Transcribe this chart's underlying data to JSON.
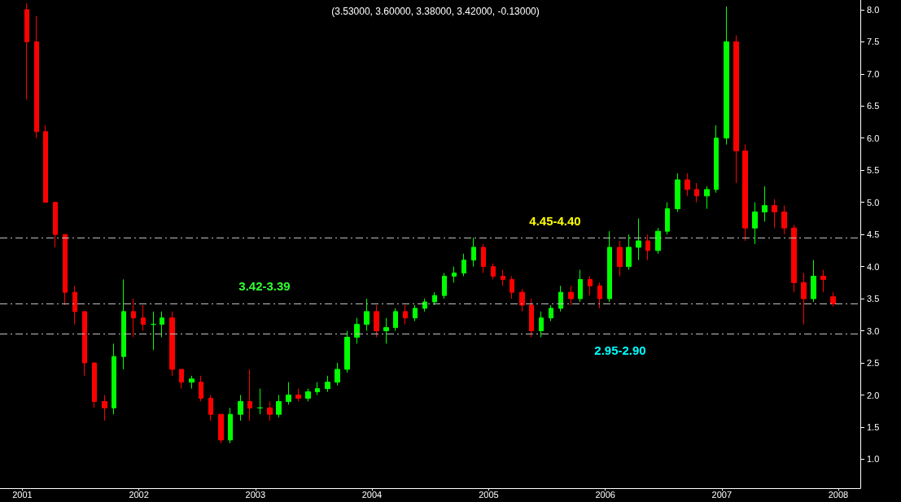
{
  "chart_data": {
    "type": "candlestick",
    "title": "(3.53000, 3.60000, 3.38000, 3.42000, -0.13000)",
    "x": [
      "2001-01-15",
      "2001-02-15",
      "2001-03-15",
      "2001-04-15",
      "2001-05-15",
      "2001-06-15",
      "2001-07-15",
      "2001-08-15",
      "2001-09-15",
      "2001-10-15",
      "2001-11-15",
      "2001-12-15",
      "2002-01-15",
      "2002-02-15",
      "2002-03-15",
      "2002-04-15",
      "2002-05-15",
      "2002-06-15",
      "2002-07-15",
      "2002-08-15",
      "2002-09-15",
      "2002-10-15",
      "2002-11-15",
      "2002-12-15",
      "2003-01-15",
      "2003-02-15",
      "2003-03-15",
      "2003-04-15",
      "2003-05-15",
      "2003-06-15",
      "2003-07-15",
      "2003-08-15",
      "2003-09-15",
      "2003-10-15",
      "2003-11-15",
      "2003-12-15",
      "2004-01-15",
      "2004-02-15",
      "2004-03-15",
      "2004-04-15",
      "2004-05-15",
      "2004-06-15",
      "2004-07-15",
      "2004-08-15",
      "2004-09-15",
      "2004-10-15",
      "2004-11-15",
      "2004-12-15",
      "2005-01-15",
      "2005-02-15",
      "2005-03-15",
      "2005-04-15",
      "2005-05-15",
      "2005-06-15",
      "2005-07-15",
      "2005-08-15",
      "2005-09-15",
      "2005-10-15",
      "2005-11-15",
      "2005-12-15",
      "2006-01-15",
      "2006-02-15",
      "2006-03-15",
      "2006-04-15",
      "2006-05-15",
      "2006-06-15",
      "2006-07-15",
      "2006-08-15",
      "2006-09-15",
      "2006-10-15",
      "2006-11-15",
      "2006-12-15",
      "2007-01-15",
      "2007-02-15",
      "2007-03-15",
      "2007-04-15",
      "2007-05-15",
      "2007-06-15",
      "2007-07-15",
      "2007-08-15",
      "2007-09-15",
      "2007-10-15",
      "2007-11-15",
      "2007-12-15"
    ],
    "ohlc": [
      [
        8.0,
        8.1,
        6.6,
        7.5
      ],
      [
        7.5,
        7.9,
        6.0,
        6.1
      ],
      [
        6.1,
        6.2,
        5.0,
        5.0
      ],
      [
        5.0,
        5.0,
        4.3,
        4.5
      ],
      [
        4.5,
        4.5,
        3.4,
        3.6
      ],
      [
        3.6,
        3.7,
        3.1,
        3.3
      ],
      [
        3.3,
        3.3,
        2.3,
        2.5
      ],
      [
        2.5,
        2.5,
        1.8,
        1.9
      ],
      [
        1.9,
        2.0,
        1.6,
        1.8
      ],
      [
        1.8,
        2.8,
        1.7,
        2.6
      ],
      [
        2.6,
        3.8,
        2.4,
        3.3
      ],
      [
        3.3,
        3.5,
        2.9,
        3.2
      ],
      [
        3.2,
        3.4,
        3.0,
        3.1
      ],
      [
        3.1,
        3.3,
        2.7,
        3.1
      ],
      [
        3.1,
        3.3,
        2.9,
        3.2
      ],
      [
        3.2,
        3.3,
        2.3,
        2.4
      ],
      [
        2.4,
        2.4,
        2.1,
        2.2
      ],
      [
        2.2,
        2.3,
        2.1,
        2.25
      ],
      [
        2.2,
        2.3,
        1.9,
        1.95
      ],
      [
        1.95,
        2.0,
        1.6,
        1.7
      ],
      [
        1.7,
        1.7,
        1.25,
        1.3
      ],
      [
        1.3,
        1.8,
        1.25,
        1.7
      ],
      [
        1.7,
        2.0,
        1.6,
        1.9
      ],
      [
        1.9,
        2.4,
        1.6,
        1.8
      ],
      [
        1.8,
        2.1,
        1.7,
        1.8
      ],
      [
        1.8,
        1.9,
        1.6,
        1.7
      ],
      [
        1.7,
        2.0,
        1.65,
        1.9
      ],
      [
        1.9,
        2.2,
        1.85,
        2.0
      ],
      [
        2.0,
        2.1,
        1.9,
        1.95
      ],
      [
        1.95,
        2.1,
        1.9,
        2.05
      ],
      [
        2.05,
        2.2,
        2.0,
        2.1
      ],
      [
        2.1,
        2.3,
        2.05,
        2.2
      ],
      [
        2.2,
        2.5,
        2.15,
        2.4
      ],
      [
        2.4,
        3.0,
        2.35,
        2.9
      ],
      [
        2.9,
        3.2,
        2.8,
        3.1
      ],
      [
        3.1,
        3.5,
        3.0,
        3.3
      ],
      [
        3.3,
        3.4,
        2.9,
        3.0
      ],
      [
        3.0,
        3.2,
        2.8,
        3.05
      ],
      [
        3.05,
        3.35,
        3.0,
        3.3
      ],
      [
        3.3,
        3.4,
        3.1,
        3.2
      ],
      [
        3.2,
        3.4,
        3.15,
        3.35
      ],
      [
        3.35,
        3.5,
        3.3,
        3.45
      ],
      [
        3.45,
        3.6,
        3.4,
        3.55
      ],
      [
        3.55,
        3.9,
        3.5,
        3.85
      ],
      [
        3.85,
        4.0,
        3.75,
        3.9
      ],
      [
        3.9,
        4.2,
        3.85,
        4.1
      ],
      [
        4.1,
        4.45,
        4.0,
        4.3
      ],
      [
        4.3,
        4.35,
        3.9,
        4.0
      ],
      [
        4.0,
        4.05,
        3.8,
        3.85
      ],
      [
        3.85,
        3.95,
        3.7,
        3.8
      ],
      [
        3.8,
        3.85,
        3.5,
        3.6
      ],
      [
        3.6,
        3.65,
        3.3,
        3.4
      ],
      [
        3.4,
        3.5,
        2.9,
        3.0
      ],
      [
        3.0,
        3.3,
        2.9,
        3.2
      ],
      [
        3.2,
        3.4,
        3.15,
        3.35
      ],
      [
        3.35,
        3.7,
        3.3,
        3.6
      ],
      [
        3.6,
        3.7,
        3.4,
        3.5
      ],
      [
        3.5,
        3.95,
        3.45,
        3.8
      ],
      [
        3.8,
        3.85,
        3.55,
        3.7
      ],
      [
        3.7,
        3.75,
        3.35,
        3.5
      ],
      [
        3.5,
        4.55,
        3.45,
        4.3
      ],
      [
        4.3,
        4.4,
        3.85,
        4.0
      ],
      [
        4.0,
        4.5,
        3.95,
        4.3
      ],
      [
        4.3,
        4.75,
        4.1,
        4.4
      ],
      [
        4.4,
        4.5,
        4.1,
        4.25
      ],
      [
        4.25,
        4.6,
        4.2,
        4.55
      ],
      [
        4.55,
        5.0,
        4.5,
        4.9
      ],
      [
        4.9,
        5.45,
        4.85,
        5.35
      ],
      [
        5.35,
        5.45,
        5.1,
        5.2
      ],
      [
        5.2,
        5.3,
        5.0,
        5.1
      ],
      [
        5.1,
        5.25,
        4.9,
        5.2
      ],
      [
        5.2,
        6.2,
        5.15,
        6.0
      ],
      [
        6.0,
        8.05,
        5.9,
        7.5
      ],
      [
        7.5,
        7.6,
        5.3,
        5.8
      ],
      [
        5.8,
        5.9,
        4.4,
        4.6
      ],
      [
        4.6,
        5.0,
        4.35,
        4.85
      ],
      [
        4.85,
        5.25,
        4.7,
        4.95
      ],
      [
        4.95,
        5.05,
        4.6,
        4.85
      ],
      [
        4.85,
        4.95,
        4.5,
        4.6
      ],
      [
        4.6,
        4.65,
        3.6,
        3.75
      ],
      [
        3.75,
        3.9,
        3.1,
        3.5
      ],
      [
        3.5,
        4.1,
        3.45,
        3.85
      ],
      [
        3.85,
        3.95,
        3.6,
        3.8
      ],
      [
        3.53,
        3.6,
        3.38,
        3.42
      ]
    ],
    "xlim": [
      "2000-10-23",
      "2008-03-10"
    ],
    "xticks": [
      {
        "value": "2001-01-01",
        "label": "2001"
      },
      {
        "value": "2002-01-01",
        "label": "2002"
      },
      {
        "value": "2003-01-01",
        "label": "2003"
      },
      {
        "value": "2004-01-01",
        "label": "2004"
      },
      {
        "value": "2005-01-01",
        "label": "2005"
      },
      {
        "value": "2006-01-01",
        "label": "2006"
      },
      {
        "value": "2007-01-01",
        "label": "2007"
      },
      {
        "value": "2008-01-01",
        "label": "2008"
      }
    ],
    "ylim": [
      0.55,
      8.15
    ],
    "yticks": [
      {
        "value": 1,
        "label": "1.0"
      },
      {
        "value": 1.5,
        "label": "1.5"
      },
      {
        "value": 2,
        "label": "2.0"
      },
      {
        "value": 2.5,
        "label": "2.5"
      },
      {
        "value": 3,
        "label": "3.0"
      },
      {
        "value": 3.5,
        "label": "3.5"
      },
      {
        "value": 4,
        "label": "4.0"
      },
      {
        "value": 4.5,
        "label": "4.5"
      },
      {
        "value": 5,
        "label": "5.0"
      },
      {
        "value": 5.5,
        "label": "5.5"
      },
      {
        "value": 6,
        "label": "6.0"
      },
      {
        "value": 6.5,
        "label": "6.5"
      },
      {
        "value": 7,
        "label": "7.0"
      },
      {
        "value": 7.5,
        "label": "7.5"
      },
      {
        "value": 8,
        "label": "8.0"
      }
    ],
    "ref_lines": [
      {
        "axis": "y",
        "value": 4.45,
        "color": "#c0c0c0",
        "line_style": "dashed"
      },
      {
        "axis": "y",
        "value": 3.42,
        "color": "#c0c0c0",
        "line_style": "dashed"
      },
      {
        "axis": "y",
        "value": 2.95,
        "color": "#c0c0c0",
        "line_style": "dashed"
      }
    ],
    "annotations": [
      "4.45-4.40",
      "3.42-3.39",
      "2.95-2.90"
    ],
    "grid": false
  }
}
